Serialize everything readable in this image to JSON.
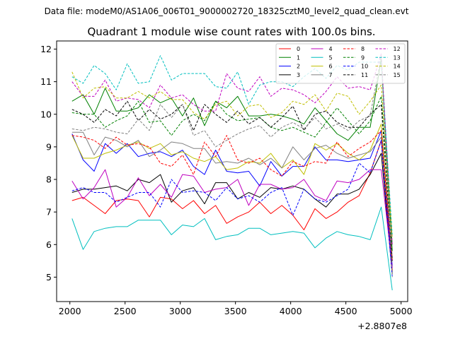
{
  "figure": {
    "suptitle": "Data file: modeM0/AS1A06_006T01_9000002720_18325cztM0_level2_quad_clean.evt",
    "offset_label": "+2.8807e8"
  },
  "chart_data": {
    "type": "line",
    "title": "Quadrant 1 module wise count rates with 100.0s bins.",
    "xlabel": "",
    "ylabel": "",
    "xlim": [
      1880,
      5060
    ],
    "ylim": [
      4.25,
      12.25
    ],
    "xticks": [
      2000,
      2500,
      3000,
      3500,
      4000,
      4500,
      5000
    ],
    "yticks": [
      5,
      6,
      7,
      8,
      9,
      10,
      11,
      12
    ],
    "x": [
      2020,
      2120,
      2220,
      2320,
      2420,
      2520,
      2620,
      2720,
      2820,
      2920,
      3020,
      3120,
      3220,
      3320,
      3420,
      3520,
      3620,
      3720,
      3820,
      3920,
      4020,
      4120,
      4220,
      4320,
      4420,
      4520,
      4620,
      4720,
      4820,
      4920
    ],
    "legend_position": "top-right",
    "series": [
      {
        "name": "0",
        "color": "#ff0000",
        "dash": "solid",
        "values": [
          7.35,
          7.45,
          7.2,
          6.95,
          7.35,
          7.4,
          7.35,
          6.85,
          7.45,
          7.4,
          7.1,
          7.35,
          6.95,
          7.2,
          6.65,
          6.85,
          7.0,
          7.3,
          6.95,
          7.2,
          6.9,
          6.45,
          7.1,
          6.8,
          7.0,
          7.3,
          7.5,
          8.2,
          9.2,
          5.2
        ]
      },
      {
        "name": "1",
        "color": "#008000",
        "dash": "solid",
        "values": [
          10.4,
          10.6,
          10.0,
          10.8,
          10.1,
          10.1,
          10.2,
          10.6,
          10.35,
          10.5,
          9.95,
          10.5,
          9.65,
          10.4,
          10.2,
          10.55,
          9.95,
          9.95,
          10.0,
          9.95,
          9.85,
          9.7,
          10.2,
          9.8,
          9.4,
          9.2,
          9.6,
          9.6,
          11.7,
          5.8
        ]
      },
      {
        "name": "2",
        "color": "#0000ff",
        "dash": "solid",
        "values": [
          9.4,
          8.6,
          8.25,
          9.1,
          8.8,
          9.1,
          8.7,
          8.8,
          8.85,
          8.7,
          8.9,
          8.4,
          8.15,
          8.9,
          8.25,
          8.2,
          8.25,
          7.8,
          8.55,
          8.1,
          8.4,
          8.4,
          9.0,
          8.6,
          8.6,
          8.55,
          8.6,
          8.65,
          9.5,
          5.35
        ]
      },
      {
        "name": "3",
        "color": "#000000",
        "dash": "solid",
        "values": [
          7.6,
          7.7,
          7.7,
          7.75,
          7.8,
          7.65,
          8.0,
          7.9,
          8.15,
          7.3,
          7.65,
          7.75,
          7.25,
          7.9,
          7.9,
          7.4,
          7.6,
          7.45,
          7.75,
          7.7,
          7.8,
          7.7,
          7.4,
          7.15,
          7.55,
          7.55,
          7.7,
          8.15,
          8.8,
          5.1
        ]
      },
      {
        "name": "4",
        "color": "#bf00bf",
        "dash": "solid",
        "values": [
          7.95,
          7.4,
          7.75,
          8.3,
          7.15,
          7.45,
          8.05,
          7.5,
          7.85,
          7.45,
          8.15,
          8.1,
          7.6,
          7.7,
          7.75,
          8.0,
          7.2,
          7.85,
          7.85,
          7.7,
          7.75,
          8.0,
          7.5,
          7.35,
          7.95,
          7.9,
          8.0,
          8.3,
          8.3,
          5.3
        ]
      },
      {
        "name": "5",
        "color": "#00bfbf",
        "dash": "solid",
        "values": [
          6.8,
          5.85,
          6.4,
          6.5,
          6.55,
          6.55,
          6.75,
          6.75,
          6.75,
          6.3,
          6.6,
          6.55,
          6.8,
          6.15,
          6.25,
          6.3,
          6.5,
          6.5,
          6.3,
          6.35,
          6.4,
          6.35,
          5.9,
          6.2,
          6.4,
          6.3,
          6.25,
          6.15,
          7.15,
          4.6
        ]
      },
      {
        "name": "6",
        "color": "#bfbf00",
        "dash": "solid",
        "values": [
          9.35,
          8.65,
          8.65,
          8.8,
          8.9,
          9.05,
          9.15,
          8.95,
          9.1,
          8.75,
          8.85,
          8.65,
          8.55,
          8.7,
          8.3,
          8.35,
          8.55,
          8.5,
          8.8,
          8.35,
          8.6,
          8.15,
          9.1,
          8.9,
          9.1,
          8.8,
          8.6,
          8.9,
          9.7,
          5.5
        ]
      },
      {
        "name": "7",
        "color": "#808080",
        "dash": "solid",
        "values": [
          9.45,
          9.45,
          8.75,
          9.3,
          9.2,
          9.0,
          9.2,
          8.7,
          8.9,
          9.15,
          9.1,
          8.95,
          8.95,
          8.5,
          8.55,
          8.5,
          8.65,
          8.45,
          8.65,
          8.35,
          9.0,
          8.6,
          8.95,
          9.05,
          8.8,
          8.65,
          8.75,
          8.85,
          9.3,
          5.6
        ]
      },
      {
        "name": "8",
        "color": "#ff0000",
        "dash": "dashed",
        "values": [
          9.35,
          9.3,
          9.2,
          8.95,
          9.3,
          9.05,
          9.1,
          9.0,
          8.5,
          8.4,
          8.75,
          8.15,
          9.15,
          8.7,
          9.35,
          8.6,
          8.5,
          8.65,
          8.3,
          8.1,
          8.55,
          8.4,
          8.55,
          8.5,
          9.15,
          8.7,
          8.95,
          9.15,
          9.5,
          5.5
        ]
      },
      {
        "name": "9",
        "color": "#008000",
        "dash": "dashed",
        "values": [
          10.05,
          10.0,
          10.0,
          9.6,
          9.8,
          9.95,
          10.4,
          9.75,
          9.8,
          9.35,
          9.8,
          10.0,
          9.8,
          10.4,
          10.0,
          9.8,
          9.85,
          9.9,
          9.6,
          9.5,
          9.6,
          9.45,
          9.3,
          9.75,
          10.2,
          9.8,
          9.4,
          9.8,
          10.55,
          6.0
        ]
      },
      {
        "name": "10",
        "color": "#0000ff",
        "dash": "dashed",
        "values": [
          7.65,
          7.75,
          7.6,
          7.6,
          7.3,
          7.45,
          7.6,
          7.6,
          7.15,
          8.0,
          7.6,
          7.65,
          7.6,
          7.35,
          7.75,
          7.4,
          7.5,
          7.3,
          7.6,
          7.75,
          6.9,
          7.7,
          7.4,
          7.3,
          7.5,
          7.7,
          8.5,
          8.2,
          9.2,
          5.0
        ]
      },
      {
        "name": "11",
        "color": "#000000",
        "dash": "dashed",
        "values": [
          10.15,
          10.0,
          9.75,
          10.15,
          9.95,
          10.4,
          9.8,
          10.15,
          9.85,
          10.0,
          10.3,
          9.5,
          10.3,
          10.0,
          9.75,
          10.1,
          9.7,
          9.9,
          9.6,
          9.9,
          10.25,
          9.5,
          10.0,
          10.1,
          9.75,
          9.6,
          9.6,
          10.0,
          10.3,
          5.5
        ]
      },
      {
        "name": "12",
        "color": "#bf00bf",
        "dash": "dashed",
        "values": [
          11.0,
          10.55,
          10.55,
          11.05,
          10.4,
          10.5,
          10.45,
          10.2,
          10.9,
          10.5,
          10.6,
          10.3,
          10.1,
          10.1,
          11.25,
          10.8,
          10.7,
          11.15,
          10.55,
          10.8,
          10.75,
          10.6,
          10.35,
          10.7,
          11.15,
          10.8,
          10.85,
          10.75,
          11.85,
          6.0
        ]
      },
      {
        "name": "13",
        "color": "#00bfbf",
        "dash": "dashed",
        "values": [
          11.15,
          10.95,
          11.5,
          11.25,
          10.75,
          11.55,
          10.95,
          11.0,
          11.8,
          11.05,
          11.25,
          11.25,
          11.25,
          10.85,
          10.8,
          11.3,
          10.3,
          10.9,
          11.0,
          11.0,
          10.85,
          11.15,
          11.4,
          11.1,
          11.5,
          11.35,
          11.6,
          11.6,
          11.6,
          6.3
        ]
      },
      {
        "name": "14",
        "color": "#bfbf00",
        "dash": "dashed",
        "values": [
          11.3,
          10.5,
          10.8,
          10.85,
          10.5,
          10.5,
          10.7,
          10.5,
          10.7,
          10.45,
          10.45,
          10.05,
          9.85,
          10.3,
          10.4,
          9.95,
          10.25,
          10.3,
          9.9,
          10.05,
          10.4,
          10.3,
          10.6,
          10.1,
          10.65,
          10.55,
          10.0,
          10.4,
          10.9,
          6.2
        ]
      },
      {
        "name": "15",
        "color": "#808080",
        "dash": "dashed",
        "values": [
          9.55,
          9.5,
          9.6,
          9.55,
          9.45,
          9.4,
          9.85,
          9.5,
          10.3,
          9.9,
          10.3,
          9.35,
          9.5,
          9.0,
          9.2,
          9.4,
          9.55,
          9.65,
          9.3,
          9.6,
          9.75,
          9.55,
          9.9,
          9.55,
          9.7,
          9.5,
          9.8,
          9.95,
          11.8,
          5.0
        ]
      }
    ]
  }
}
